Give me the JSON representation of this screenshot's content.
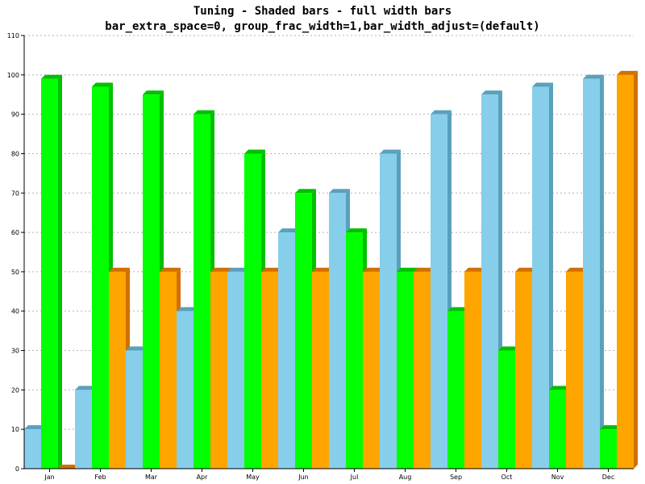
{
  "chart_data": {
    "type": "bar",
    "title": "Tuning - Shaded bars - full width bars",
    "subtitle": "bar_extra_space=0, group_frac_width=1,bar_width_adjust=(default)",
    "xlabel": "",
    "ylabel": "",
    "categories": [
      "Jan",
      "Feb",
      "Mar",
      "Apr",
      "May",
      "Jun",
      "Jul",
      "Aug",
      "Sep",
      "Oct",
      "Nov",
      "Dec"
    ],
    "ylim": [
      0,
      110
    ],
    "yticks": [
      0,
      10,
      20,
      30,
      40,
      50,
      60,
      70,
      80,
      90,
      100,
      110
    ],
    "grid": true,
    "legend": "none",
    "series": [
      {
        "color": "#87ceeb",
        "shade": "#5aa0bc",
        "values": [
          10,
          20,
          30,
          40,
          50,
          60,
          70,
          80,
          90,
          95,
          97,
          99
        ]
      },
      {
        "color": "#00ff00",
        "shade": "#00c000",
        "values": [
          99,
          97,
          95,
          90,
          80,
          70,
          60,
          50,
          40,
          30,
          20,
          10
        ]
      },
      {
        "color": "#ffa500",
        "shade": "#d07000",
        "values": [
          0,
          50,
          50,
          50,
          50,
          50,
          50,
          50,
          50,
          50,
          50,
          100
        ]
      }
    ]
  }
}
